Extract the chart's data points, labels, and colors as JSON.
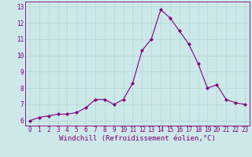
{
  "x": [
    0,
    1,
    2,
    3,
    4,
    5,
    6,
    7,
    8,
    9,
    10,
    11,
    12,
    13,
    14,
    15,
    16,
    17,
    18,
    19,
    20,
    21,
    22,
    23
  ],
  "y": [
    6.0,
    6.2,
    6.3,
    6.4,
    6.4,
    6.5,
    6.8,
    7.3,
    7.3,
    7.0,
    7.3,
    8.3,
    10.3,
    11.0,
    12.8,
    12.3,
    11.5,
    10.7,
    9.5,
    8.0,
    8.2,
    7.3,
    7.1,
    7.0
  ],
  "ylim": [
    5.7,
    13.3
  ],
  "yticks": [
    6,
    7,
    8,
    9,
    10,
    11,
    12,
    13
  ],
  "xticks": [
    0,
    1,
    2,
    3,
    4,
    5,
    6,
    7,
    8,
    9,
    10,
    11,
    12,
    13,
    14,
    15,
    16,
    17,
    18,
    19,
    20,
    21,
    22,
    23
  ],
  "xlabel": "Windchill (Refroidissement éolien,°C)",
  "line_color": "#800080",
  "marker": "D",
  "marker_size": 2,
  "bg_color": "#cce8e8",
  "grid_color": "#b0d8d8",
  "tick_color": "#800080",
  "label_color": "#800080",
  "tick_fontsize": 5.5,
  "xlabel_fontsize": 6.5
}
